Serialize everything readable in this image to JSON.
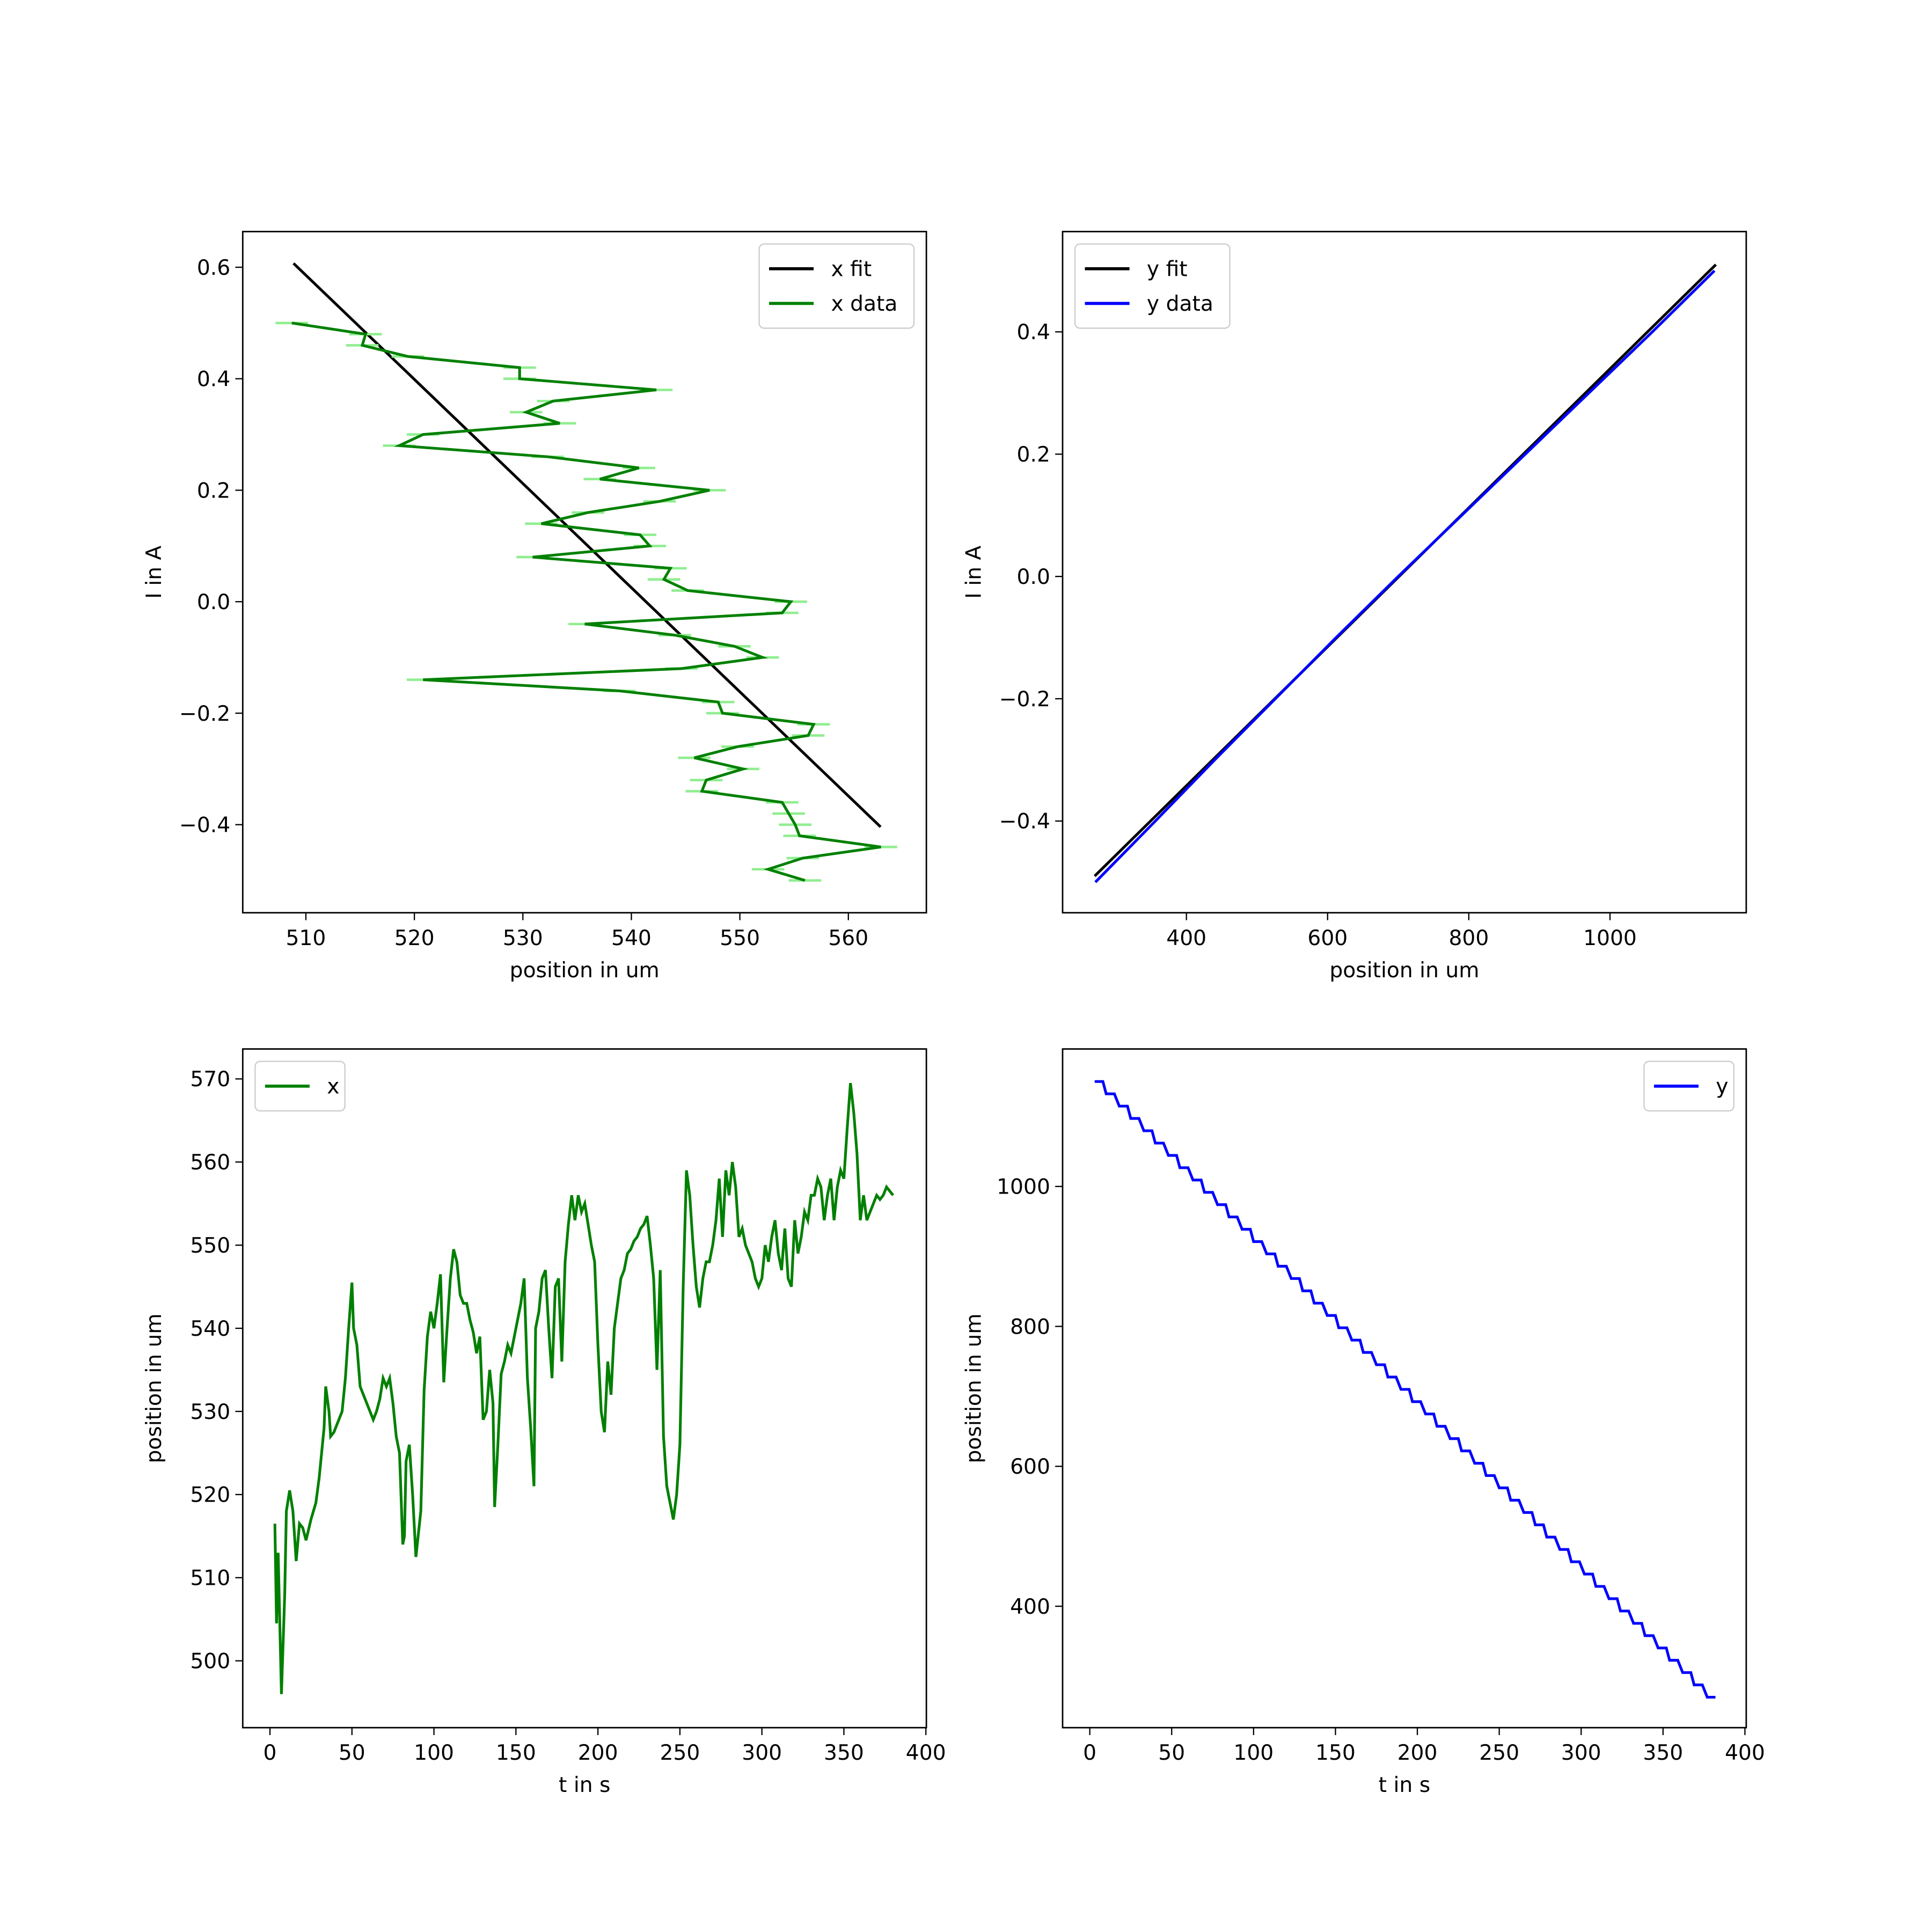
{
  "chart_data": [
    {
      "type": "line",
      "xlabel": "position in um",
      "ylabel": "I in A",
      "xlim": [
        504.18,
        567.19
      ],
      "ylim": [
        -0.558,
        0.664
      ],
      "xticks": [
        510,
        520,
        530,
        540,
        550,
        560
      ],
      "yticks": [
        {
          "value": -0.4,
          "label": "−0.4"
        },
        {
          "value": -0.2,
          "label": "−0.2"
        },
        {
          "value": 0,
          "label": "0.0"
        },
        0.2,
        0.4,
        0.6
      ],
      "legend": "upper right",
      "series": [
        {
          "name": "x fit",
          "color": "#000000",
          "x": [
            508.86,
            562.97
          ],
          "values": [
            0.607,
            -0.404
          ]
        },
        {
          "name": "x data",
          "color": "#008000",
          "errcolor": "#90ee90",
          "x": [
            508.7,
            515.5,
            515.2,
            519.4,
            529.7,
            529.7,
            542.3,
            532.8,
            530.3,
            533.4,
            520.8,
            518.6,
            532.3,
            540.7,
            537.1,
            547.2,
            542.6,
            536.0,
            531.7,
            540.8,
            541.7,
            530.9,
            543.6,
            543.0,
            545.2,
            554.7,
            553.9,
            535.7,
            544.0,
            549.5,
            552.1,
            544.6,
            520.8,
            538.9,
            548.0,
            548.4,
            556.8,
            556.3,
            549.8,
            545.8,
            550.3,
            546.9,
            546.5,
            553.9,
            554.5,
            555.1,
            555.5,
            563.0,
            555.8,
            552.6,
            556.0
          ],
          "values": [
            0.5,
            0.48,
            0.46,
            0.44,
            0.42,
            0.4,
            0.38,
            0.36,
            0.34,
            0.32,
            0.3,
            0.28,
            0.26,
            0.24,
            0.22,
            0.2,
            0.18,
            0.16,
            0.14,
            0.12,
            0.1,
            0.08,
            0.06,
            0.04,
            0.02,
            0,
            -0.02,
            -0.04,
            -0.06,
            -0.08,
            -0.1,
            -0.12,
            -0.14,
            -0.16,
            -0.18,
            -0.2,
            -0.22,
            -0.24,
            -0.26,
            -0.28,
            -0.3,
            -0.32,
            -0.34,
            -0.36,
            -0.38,
            -0.4,
            -0.42,
            -0.44,
            -0.46,
            -0.48,
            -0.5
          ],
          "xerr": [
            1.5,
            1.5,
            1.5,
            1.5,
            1.5,
            1.5,
            1.5,
            1.5,
            1.5,
            1.5,
            1.5,
            1.5,
            1.5,
            1.5,
            1.5,
            1.5,
            1.5,
            1.5,
            1.5,
            1.5,
            1.5,
            1.5,
            1.5,
            1.5,
            1.5,
            1.5,
            1.5,
            1.5,
            1.5,
            1.5,
            1.5,
            1.5,
            1.5,
            1.5,
            1.5,
            1.5,
            1.5,
            1.5,
            1.5,
            1.5,
            1.5,
            1.5,
            1.5,
            1.5,
            1.5,
            1.5,
            1.5,
            1.5,
            1.5,
            1.5,
            1.5
          ]
        }
      ]
    },
    {
      "type": "line",
      "xlabel": "position in um",
      "ylabel": "I in A",
      "xlim": [
        224.6,
        1193
      ],
      "ylim": [
        -0.55,
        0.564
      ],
      "xticks": [
        400,
        600,
        800,
        1000
      ],
      "yticks": [
        {
          "value": -0.4,
          "label": "−0.4"
        },
        {
          "value": -0.2,
          "label": "−0.2"
        },
        {
          "value": 0,
          "label": "0.0"
        },
        0.2,
        0.4
      ],
      "legend": "upper left",
      "series": [
        {
          "name": "y fit",
          "color": "#000000",
          "x": [
            270,
            1150
          ],
          "values": [
            -0.49,
            0.51
          ]
        },
        {
          "name": "y data",
          "color": "#0000ff",
          "x": [
            271,
            356,
            440,
            526,
            612,
            700,
            790,
            880,
            970,
            1060,
            1148
          ],
          "values": [
            -0.5,
            -0.4,
            -0.3,
            -0.2,
            -0.1,
            0,
            0.1,
            0.2,
            0.3,
            0.4,
            0.5
          ]
        }
      ]
    },
    {
      "type": "line",
      "xlabel": "t in s",
      "ylabel": "position in um",
      "xlim": [
        -16.6,
        400.3
      ],
      "ylim": [
        491.96,
        573.6
      ],
      "xticks": [
        0,
        50,
        100,
        150,
        200,
        250,
        300,
        350,
        400
      ],
      "yticks": [
        500,
        510,
        520,
        530,
        540,
        550,
        560,
        570
      ],
      "legend": "upper left",
      "series": [
        {
          "name": "x",
          "color": "#008000",
          "x": [
            3,
            4,
            5,
            7,
            9,
            10,
            12,
            14,
            16,
            18,
            20,
            22,
            25,
            28,
            30,
            33,
            34,
            36,
            37,
            39,
            42,
            44,
            46,
            48,
            50,
            51,
            53,
            55,
            57,
            59,
            61,
            63,
            65,
            67,
            69,
            71,
            73,
            75,
            77,
            79,
            81,
            82,
            83,
            85,
            87,
            89,
            92,
            94,
            96,
            98,
            100,
            102,
            104,
            106,
            108,
            110,
            112,
            114,
            116,
            118,
            120,
            122,
            124,
            126,
            128,
            130,
            132,
            134,
            136,
            137,
            139,
            141,
            143,
            145,
            147,
            149,
            151,
            153,
            155,
            157,
            159,
            161,
            162,
            164,
            166,
            168,
            170,
            172,
            174,
            176,
            178,
            180,
            182,
            184,
            186,
            188,
            190,
            192,
            194,
            196,
            198,
            200,
            202,
            204,
            206,
            208,
            210,
            212,
            214,
            216,
            218,
            220,
            222,
            224,
            226,
            228,
            230,
            232,
            234,
            236,
            238,
            240,
            242,
            244,
            246,
            248,
            250,
            252,
            254,
            256,
            258,
            260,
            262,
            264,
            266,
            268,
            270,
            272,
            274,
            276,
            278,
            280,
            282,
            284,
            286,
            288,
            290,
            292,
            294,
            296,
            298,
            300,
            302,
            304,
            306,
            308,
            310,
            312,
            314,
            316,
            318,
            320,
            322,
            324,
            326,
            328,
            330,
            332,
            334,
            336,
            338,
            340,
            342,
            344,
            346,
            348,
            350,
            352,
            354,
            356,
            358,
            360,
            362,
            364,
            366,
            368,
            370,
            372,
            374,
            376,
            378,
            380
          ],
          "values": [
            516.5,
            504.5,
            513,
            496,
            508,
            518,
            520.5,
            518,
            512,
            516.5,
            516,
            514.5,
            517,
            519,
            522,
            528,
            533,
            530,
            527,
            527.5,
            529,
            530,
            534,
            540,
            545.5,
            540,
            538,
            533,
            532,
            531,
            530,
            529,
            530,
            531.5,
            534,
            533,
            534,
            531,
            527,
            525,
            514,
            515,
            524,
            526,
            520,
            512.5,
            518,
            532.5,
            539,
            542,
            540,
            543,
            546.5,
            533.5,
            540,
            546,
            549.5,
            548,
            544,
            543,
            543,
            541,
            539.5,
            537,
            539,
            529,
            530,
            535,
            531,
            518.5,
            526,
            534.5,
            536,
            538,
            537,
            539,
            541,
            543,
            546,
            534,
            528,
            521,
            540,
            542,
            546,
            547,
            540,
            534,
            545,
            546,
            536,
            548,
            552.5,
            556,
            553,
            556,
            554,
            555,
            552.5,
            550,
            548,
            538,
            530,
            527.5,
            536,
            532,
            540,
            543,
            546,
            547,
            549,
            549.5,
            550.5,
            551,
            552,
            552.5,
            553.5,
            550,
            546,
            535,
            547,
            527,
            521,
            519,
            517,
            520,
            526,
            545,
            559,
            556,
            550,
            545,
            542.5,
            546,
            548,
            548,
            550,
            553,
            558,
            551,
            559,
            556,
            560,
            557,
            551,
            552,
            550,
            549,
            548,
            546,
            545,
            546,
            550,
            548,
            551,
            553,
            549,
            547,
            552,
            546,
            545,
            553,
            549,
            551,
            554,
            553,
            556,
            556,
            558,
            557,
            553,
            556,
            558,
            553,
            557,
            559,
            558,
            564,
            569.5,
            566,
            561,
            553,
            556,
            553,
            554,
            555,
            556,
            555.5,
            556,
            557,
            556.5,
            556
          ]
        }
      ]
    },
    {
      "type": "line",
      "xlabel": "t in s",
      "ylabel": "position in um",
      "xlim": [
        -16.6,
        400.8
      ],
      "ylim": [
        226.5,
        1196.5
      ],
      "xticks": [
        0,
        50,
        100,
        150,
        200,
        250,
        300,
        350,
        400
      ],
      "yticks": [
        400,
        600,
        800,
        1000
      ],
      "legend": "upper right",
      "series": [
        {
          "name": "y",
          "color": "#0000ff",
          "x": [
            3,
            8,
            10,
            15,
            18,
            23,
            25,
            30,
            33,
            38,
            40,
            45,
            48,
            53,
            55,
            60,
            63,
            68,
            70,
            75,
            78,
            83,
            85,
            90,
            93,
            98,
            100,
            105,
            108,
            113,
            115,
            120,
            123,
            128,
            130,
            135,
            137,
            142,
            145,
            150,
            152,
            157,
            160,
            165,
            167,
            172,
            175,
            180,
            182,
            187,
            190,
            195,
            197,
            202,
            205,
            210,
            212,
            217,
            220,
            225,
            227,
            232,
            235,
            240,
            242,
            247,
            250,
            255,
            257,
            262,
            265,
            270,
            272,
            277,
            279,
            284,
            287,
            292,
            294,
            299,
            302,
            307,
            309,
            314,
            317,
            322,
            324,
            329,
            332,
            337,
            339,
            344,
            347,
            352,
            354,
            359,
            362,
            367,
            369,
            374,
            377,
            382
          ],
          "values": [
            1150,
            1150,
            1132.4,
            1132.4,
            1114.8,
            1114.8,
            1097.2,
            1097.2,
            1079.6,
            1079.6,
            1062,
            1062,
            1044.4,
            1044.4,
            1026.8,
            1026.8,
            1009.2,
            1009.2,
            991.6,
            991.6,
            974,
            974,
            956.4,
            956.4,
            938.8,
            938.8,
            921.2,
            921.2,
            903.6,
            903.6,
            886,
            886,
            868.4,
            868.4,
            850.8,
            850.8,
            833.2,
            833.2,
            815.6,
            815.6,
            798,
            798,
            780.4,
            780.4,
            762.8,
            762.8,
            745.2,
            745.2,
            727.6,
            727.6,
            710,
            710,
            692.4,
            692.4,
            674.8,
            674.8,
            657.2,
            657.2,
            639.6,
            639.6,
            622,
            622,
            604.4,
            604.4,
            586.8,
            586.8,
            569.2,
            569.2,
            551.6,
            551.6,
            534,
            534,
            516.4,
            516.4,
            498.8,
            498.8,
            481.2,
            481.2,
            463.6,
            463.6,
            446,
            446,
            428.4,
            428.4,
            410.8,
            410.8,
            393.2,
            393.2,
            375.6,
            375.6,
            358,
            358,
            340.4,
            340.4,
            322.8,
            322.8,
            305.2,
            305.2,
            287.6,
            287.6,
            270,
            270
          ]
        }
      ]
    }
  ]
}
